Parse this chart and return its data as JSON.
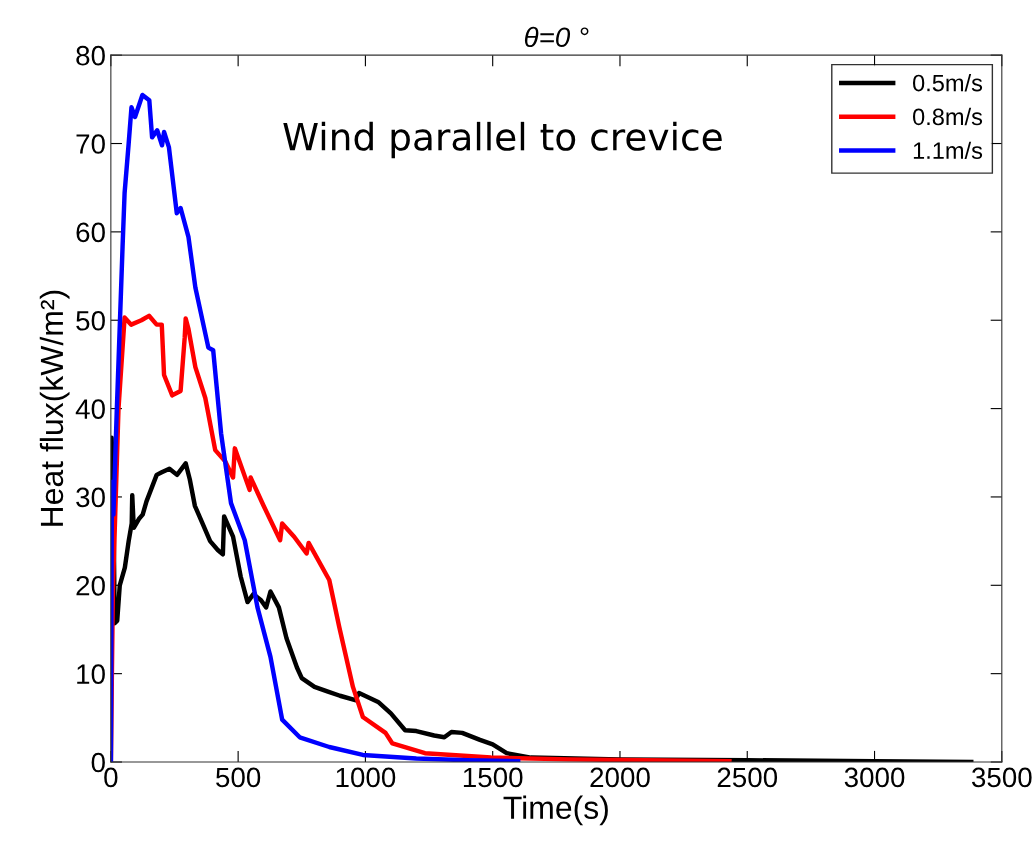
{
  "chart_data": {
    "type": "line",
    "title": "θ=0 °",
    "xlabel": "Time(s)",
    "ylabel": "Heat flux(kW/m²)",
    "annotations": [
      "Wind parallel to crevice"
    ],
    "xlim": [
      0,
      3500
    ],
    "xticks": [
      0,
      500,
      1000,
      1500,
      2000,
      2500,
      3000,
      3500
    ],
    "ylim": [
      0,
      80
    ],
    "yticks": [
      0,
      10,
      20,
      30,
      40,
      50,
      60,
      70,
      80
    ],
    "grid": false,
    "legend": "top right",
    "marker": "none",
    "line_style": "solid",
    "series": [
      {
        "name": "0.5m/s",
        "color": "#000000",
        "x": [
          0,
          3,
          10,
          15,
          25,
          35,
          55,
          70,
          82,
          84,
          90,
          110,
          125,
          140,
          160,
          180,
          200,
          230,
          260,
          294,
          310,
          330,
          360,
          390,
          420,
          440,
          445,
          480,
          510,
          537,
          560,
          590,
          610,
          627,
          660,
          690,
          731,
          750,
          800,
          850,
          900,
          960,
          975,
          1050,
          1100,
          1156,
          1200,
          1270,
          1310,
          1338,
          1380,
          1450,
          1500,
          1555,
          1650,
          2000,
          2500,
          3000,
          3380
        ],
        "values": [
          0,
          36.7,
          30,
          15.7,
          16,
          20,
          22,
          25,
          27,
          30.2,
          26.5,
          27.5,
          28,
          29.5,
          31,
          32.5,
          32.8,
          33.2,
          32.5,
          33.8,
          32,
          29,
          27,
          25,
          24,
          23.5,
          27.8,
          25.5,
          21,
          18.1,
          19,
          18.3,
          17.5,
          19.3,
          17.5,
          14,
          10.7,
          9.5,
          8.5,
          8,
          7.5,
          7,
          7.8,
          6.8,
          5.5,
          3.6,
          3.5,
          3,
          2.8,
          3.4,
          3.3,
          2.5,
          2,
          1,
          0.5,
          0.3,
          0.2,
          0.1,
          0
        ]
      },
      {
        "name": "0.8m/s",
        "color": "#ff0000",
        "x": [
          0,
          8,
          30,
          54,
          80,
          120,
          150,
          180,
          200,
          209,
          241,
          274,
          290,
          294,
          305,
          332,
          371,
          410,
          450,
          480,
          487,
          545,
          549,
          600,
          665,
          673,
          720,
          769,
          777,
          858,
          897,
          951,
          990,
          1079,
          1106,
          1234,
          1493,
          1800,
          2100,
          2430
        ],
        "values": [
          0,
          19.5,
          40,
          50.3,
          49.5,
          50,
          50.5,
          49.5,
          49.5,
          43.8,
          41.5,
          42,
          48,
          50.2,
          49,
          44.7,
          41.2,
          35.3,
          34,
          32.2,
          35.5,
          30.8,
          32.2,
          29,
          25.1,
          27,
          25.5,
          23.6,
          24.8,
          20.6,
          15.3,
          8.5,
          5.1,
          3.3,
          2.1,
          1.0,
          0.5,
          0.3,
          0.2,
          0.1
        ]
      },
      {
        "name": "1.1m/s",
        "color": "#0000ff",
        "x": [
          0,
          4,
          10,
          23,
          46,
          54,
          70,
          81,
          95,
          124,
          151,
          162,
          182,
          201,
          209,
          228,
          259,
          274,
          305,
          332,
          383,
          402,
          433,
          472,
          526,
          576,
          627,
          673,
          742,
          858,
          990,
          1200,
          1400,
          1600
        ],
        "values": [
          0,
          31.7,
          28,
          39.5,
          58.3,
          64.4,
          70,
          74.1,
          73,
          75.5,
          74.9,
          70.7,
          71.5,
          69.8,
          71.3,
          69.6,
          62.1,
          62.7,
          59.4,
          53.7,
          46.9,
          46.6,
          37.2,
          29.3,
          25.1,
          17.5,
          11.9,
          4.8,
          2.8,
          1.7,
          0.8,
          0.4,
          0.2,
          0.1
        ]
      }
    ]
  }
}
